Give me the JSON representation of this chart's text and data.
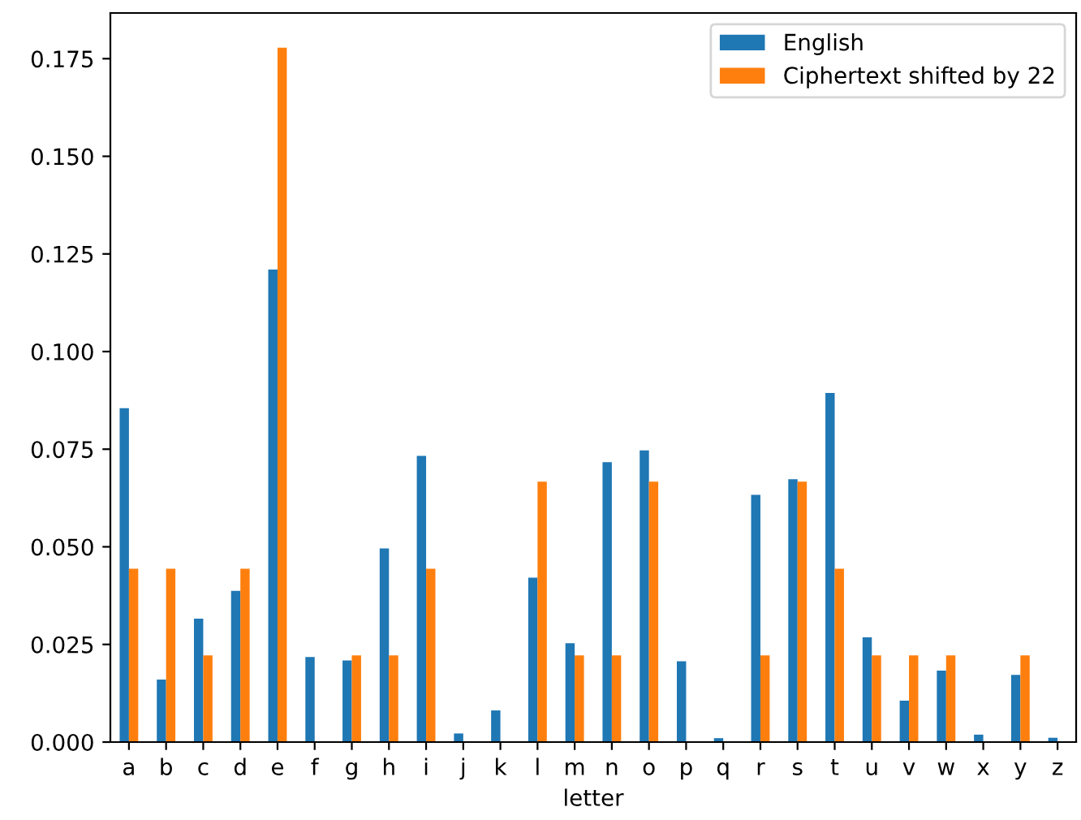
{
  "chart_data": {
    "type": "bar",
    "xlabel": "letter",
    "categories": [
      "a",
      "b",
      "c",
      "d",
      "e",
      "f",
      "g",
      "h",
      "i",
      "j",
      "k",
      "l",
      "m",
      "n",
      "o",
      "p",
      "q",
      "r",
      "s",
      "t",
      "u",
      "v",
      "w",
      "x",
      "y",
      "z"
    ],
    "series": [
      {
        "name": "English",
        "color": "#1f77b4",
        "values": [
          0.0855,
          0.016,
          0.0316,
          0.0387,
          0.121,
          0.0218,
          0.0209,
          0.0496,
          0.0733,
          0.0022,
          0.0081,
          0.0421,
          0.0253,
          0.0717,
          0.0747,
          0.0207,
          0.001,
          0.0633,
          0.0673,
          0.0894,
          0.0268,
          0.0106,
          0.0183,
          0.0019,
          0.0172,
          0.0011
        ]
      },
      {
        "name": "Ciphertext shifted by 22",
        "color": "#ff7f0e",
        "values": [
          0.0444,
          0.0444,
          0.0222,
          0.0444,
          0.1778,
          0,
          0.0222,
          0.0222,
          0.0444,
          0,
          0,
          0.0667,
          0.0222,
          0.0222,
          0.0667,
          0,
          0,
          0.0222,
          0.0667,
          0.0444,
          0.0222,
          0.0222,
          0.0222,
          0,
          0.0222,
          0
        ]
      }
    ],
    "ylim": [
      0,
      0.1867
    ],
    "yticks": [
      {
        "value": 0,
        "label": "0.000"
      },
      {
        "value": 0.025,
        "label": "0.025"
      },
      {
        "value": 0.05,
        "label": "0.050"
      },
      {
        "value": 0.075,
        "label": "0.075"
      },
      {
        "value": 0.1,
        "label": "0.100"
      },
      {
        "value": 0.125,
        "label": "0.125"
      },
      {
        "value": 0.15,
        "label": "0.150"
      },
      {
        "value": 0.175,
        "label": "0.175"
      }
    ],
    "grid": false,
    "legend": "upper right"
  }
}
